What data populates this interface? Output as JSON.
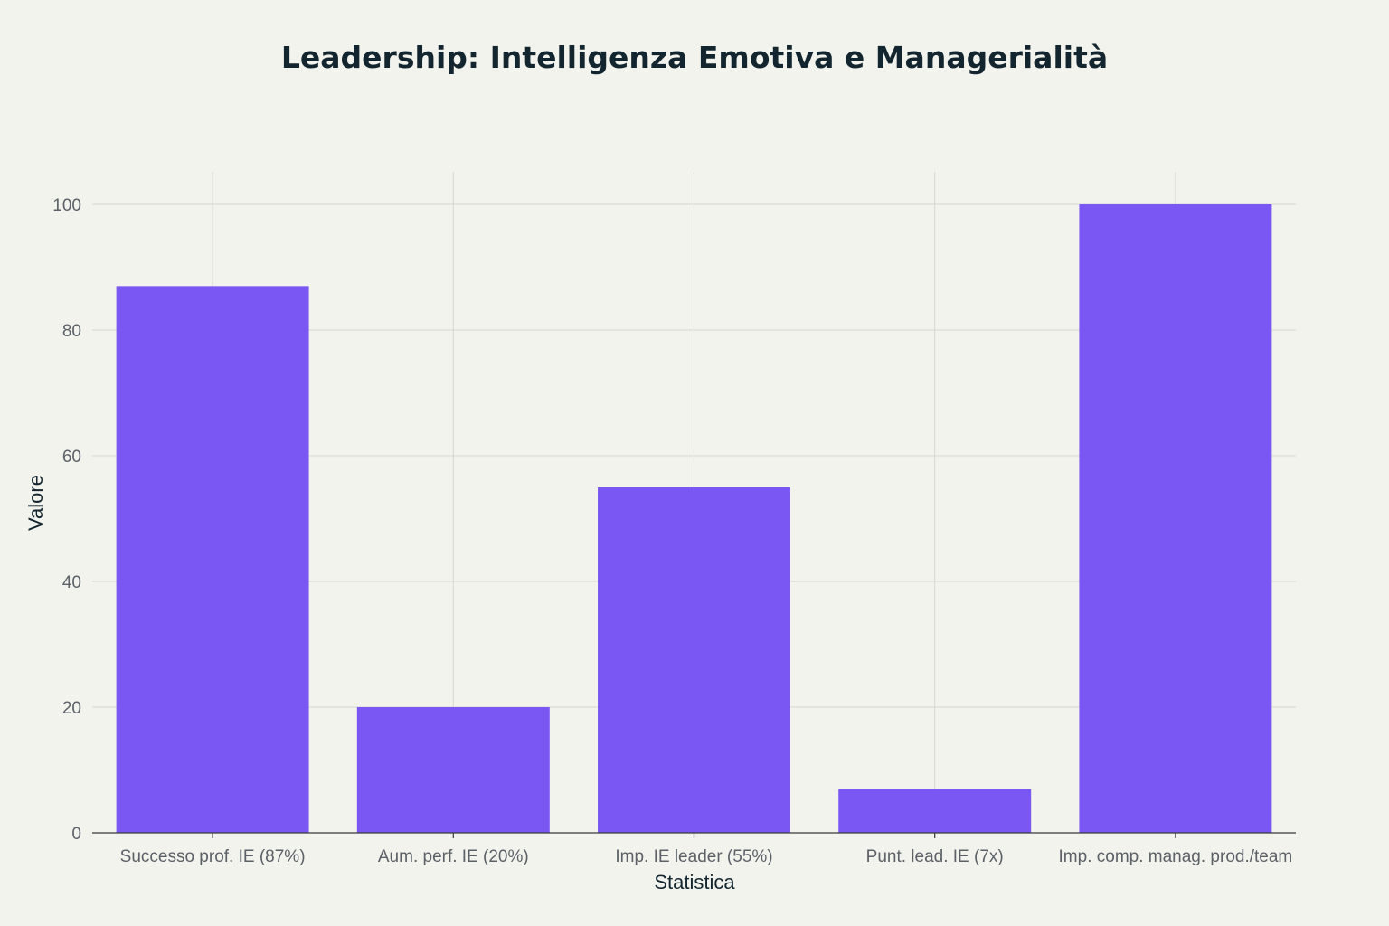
{
  "chart_data": {
    "type": "bar",
    "title": "Leadership: Intelligenza Emotiva e Managerialità",
    "xlabel": "Statistica",
    "ylabel": "Valore",
    "categories": [
      "Successo prof. IE (87%)",
      "Aum. perf. IE (20%)",
      "Imp. IE leader (55%)",
      "Punt. lead. IE (7x)",
      "Imp. comp. manag. prod./team"
    ],
    "values": [
      87,
      20,
      55,
      7,
      100
    ],
    "ylim": [
      0,
      105
    ],
    "yticks": [
      0,
      20,
      40,
      60,
      80,
      100
    ],
    "grid": true,
    "legend": "none",
    "colors": {
      "bar": "#7a57f2",
      "background": "#f3f3ee",
      "grid": "#d6d6d1",
      "text": "#13262f",
      "tick": "#5b6167"
    }
  }
}
